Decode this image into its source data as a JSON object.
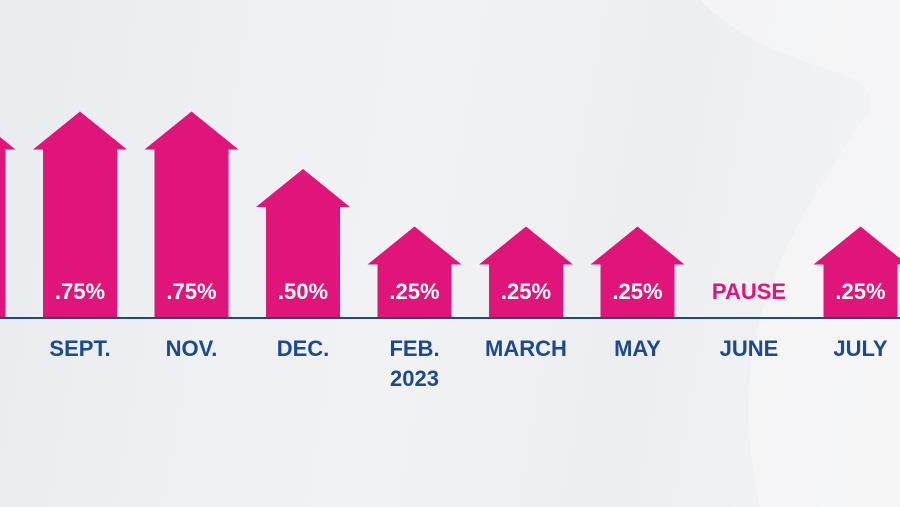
{
  "chart_data": {
    "type": "bar",
    "categories": [
      null,
      "SEPT.",
      "NOV.",
      "DEC.",
      "FEB.\n2023",
      "MARCH",
      "MAY",
      "JUNE",
      "JULY"
    ],
    "values": [
      0.75,
      0.75,
      0.75,
      0.5,
      0.25,
      0.25,
      0.25,
      0,
      0.25
    ],
    "value_labels": [
      null,
      ".75%",
      ".75%",
      ".50%",
      ".25%",
      ".25%",
      ".25%",
      "PAUSE",
      ".25%"
    ],
    "color": "#e0157a"
  }
}
